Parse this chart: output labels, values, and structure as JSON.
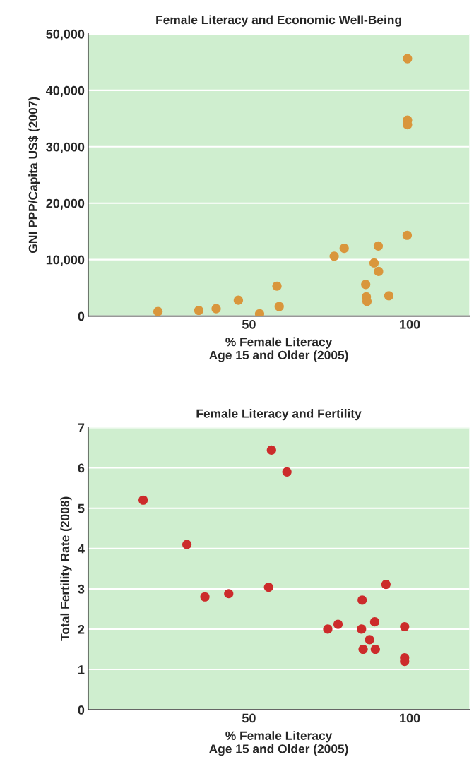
{
  "chart_data": [
    {
      "type": "scatter",
      "title": "Female Literacy and Economic Well-Being",
      "xlabel": "% Female Literacy\nAge 15 and Older (2005)",
      "ylabel": "GNI PPP/Capita US$ (2007)",
      "x": [
        21.7,
        34.4,
        39.8,
        46.7,
        53.3,
        58.7,
        59.4,
        76.5,
        79.6,
        86.3,
        86.5,
        86.7,
        88.9,
        90.2,
        90.3,
        93.5,
        99.2,
        99.3,
        99.3,
        99.3
      ],
      "series": [
        {
          "color": "#d9963c",
          "values": [
            800,
            1000,
            1300,
            2800,
            400,
            5300,
            1700,
            10600,
            12000,
            5600,
            3400,
            2600,
            9400,
            12400,
            7900,
            3600,
            14300,
            34700,
            33900,
            45600
          ]
        }
      ],
      "xlim": [
        0,
        118.5
      ],
      "xticks": [
        50,
        100
      ],
      "ylim": [
        0,
        50000
      ],
      "yticks": [
        0,
        {
          "value": 10000,
          "label": "10,000"
        },
        {
          "value": 20000,
          "label": "20,000"
        },
        {
          "value": 30000,
          "label": "30,000"
        },
        {
          "value": 40000,
          "label": "40,000"
        },
        {
          "value": 50000,
          "label": "50,000"
        }
      ],
      "grid": "y",
      "marker": "circle"
    },
    {
      "type": "scatter",
      "title": "Female Literacy and Fertility",
      "xlabel": "% Female Literacy\nAge 15 and Older (2005)",
      "ylabel": "Total Fertility Rate (2008)",
      "x": [
        17.1,
        30.7,
        36.3,
        43.7,
        56.1,
        57.0,
        61.8,
        74.5,
        77.7,
        85.0,
        85.2,
        85.5,
        87.5,
        89.1,
        89.3,
        92.6,
        98.4,
        98.4,
        98.4
      ],
      "series": [
        {
          "color": "#cc2b2b",
          "values": [
            5.2,
            4.1,
            2.8,
            2.88,
            3.04,
            6.44,
            5.9,
            2.0,
            2.12,
            2.0,
            2.72,
            1.5,
            1.74,
            2.18,
            1.5,
            3.11,
            2.06,
            1.29,
            1.2
          ]
        }
      ],
      "xlim": [
        0,
        118.5
      ],
      "xticks": [
        50,
        100
      ],
      "ylim": [
        0,
        7
      ],
      "yticks": [
        0,
        1,
        2,
        3,
        4,
        5,
        6,
        7
      ],
      "grid": "y",
      "marker": "circle"
    }
  ]
}
